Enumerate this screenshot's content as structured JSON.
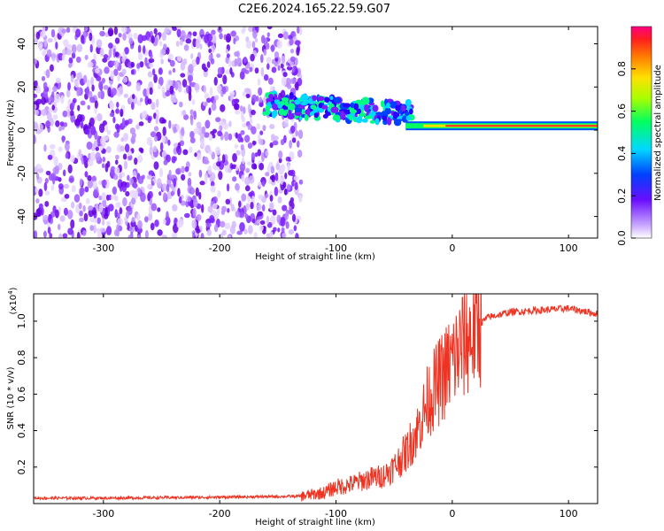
{
  "title": "C2E6.2024.165.22.59.G07",
  "colors": {
    "snr_line": "#ee3322",
    "spectrum_noise": "#7a1cff",
    "spectrum_signal_ridge": "#ff2a2a"
  },
  "chart_data": [
    {
      "type": "heatmap",
      "xlabel": "Height of straight line (km)",
      "ylabel": "Frequency (Hz)",
      "xlim": [
        -360,
        125
      ],
      "ylim": [
        -50,
        48
      ],
      "xticks": [
        "-300",
        "-200",
        "-100",
        "0",
        "100"
      ],
      "yticks": [
        "-40",
        "-20",
        "0",
        "20",
        "40"
      ],
      "colorbar": {
        "label": "Normalized spectral amplitude",
        "range": [
          0,
          1
        ],
        "ticks": [
          "0.0",
          "0.2",
          "0.4",
          "0.6",
          "0.8"
        ],
        "colormap": "rainbow"
      },
      "features": [
        {
          "region": "scattered noise",
          "x_range": [
            -360,
            -130
          ],
          "freq_range": [
            -50,
            48
          ]
        },
        {
          "region": "signal ridge",
          "x_range": [
            -160,
            125
          ],
          "freq_start": 12,
          "freq_end": 2
        }
      ]
    },
    {
      "type": "line",
      "xlabel": "Height of straight line (km)",
      "ylabel": "SNR (10 * v/v)",
      "yscale_label": "(x10",
      "yscale_exponent": "4",
      "xlim": [
        -360,
        125
      ],
      "ylim": [
        0,
        1.15
      ],
      "xticks": [
        "-300",
        "-200",
        "-100",
        "0",
        "100"
      ],
      "yticks": [
        "0.2",
        "0.4",
        "0.6",
        "0.8",
        "1.0"
      ],
      "x": [
        -360,
        -300,
        -200,
        -130,
        -110,
        -100,
        -90,
        -80,
        -70,
        -60,
        -50,
        -40,
        -30,
        -20,
        -10,
        0,
        10,
        20,
        30,
        50,
        75,
        100,
        125
      ],
      "y": [
        0.03,
        0.03,
        0.035,
        0.04,
        0.06,
        0.09,
        0.1,
        0.12,
        0.14,
        0.15,
        0.2,
        0.28,
        0.4,
        0.58,
        0.68,
        0.78,
        0.88,
        0.96,
        1.02,
        1.05,
        1.06,
        1.07,
        1.04
      ]
    }
  ]
}
